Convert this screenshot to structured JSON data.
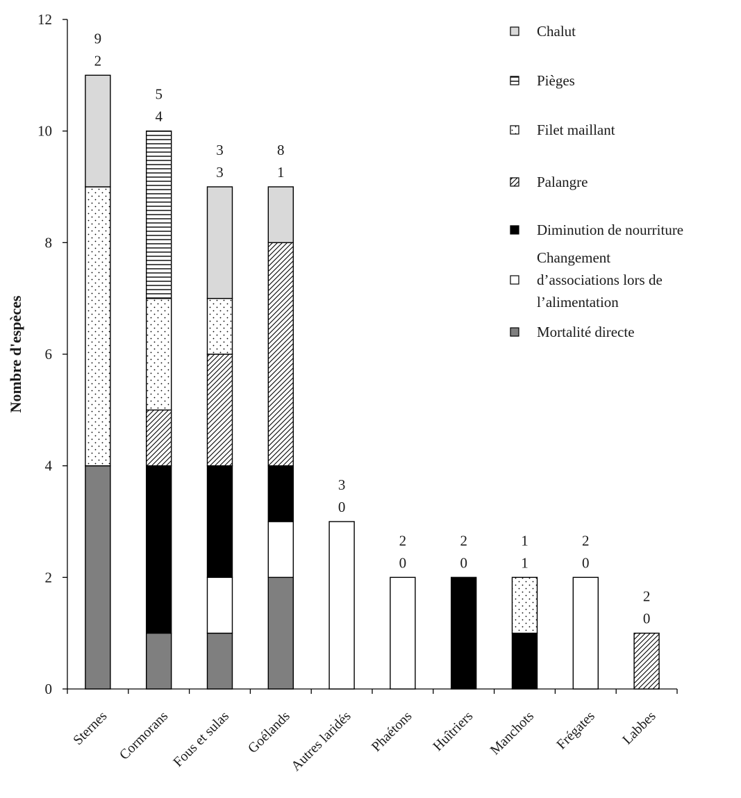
{
  "chart_data": {
    "type": "bar",
    "stacked": true,
    "ylabel": "Nombre d'espèces",
    "xlabel": "",
    "ylim": [
      0,
      12
    ],
    "yticks": [
      "0",
      "2",
      "4",
      "6",
      "8",
      "10",
      "12"
    ],
    "grid": false,
    "legend_position": "top-right",
    "categories": [
      "Sternes",
      "Cormorans",
      "Fous et sulas",
      "Goélands",
      "Autres laridés",
      "Phaétons",
      "Huîtriers",
      "Manchots",
      "Frégates",
      "Labbes"
    ],
    "series": [
      {
        "name": "Mortalité directe",
        "color": "#7f7f7f",
        "pattern": "solid",
        "values": [
          4,
          1,
          1,
          2,
          0,
          0,
          0,
          0,
          0,
          0
        ]
      },
      {
        "name": "Changement d’associations lors de l’alimentation",
        "color": "#ffffff",
        "pattern": "none",
        "values": [
          0,
          0,
          1,
          1,
          3,
          2,
          0,
          0,
          2,
          0
        ]
      },
      {
        "name": "Diminution de nourriture",
        "color": "#000000",
        "pattern": "solid",
        "values": [
          0,
          3,
          2,
          1,
          0,
          0,
          2,
          1,
          0,
          0
        ]
      },
      {
        "name": "Palangre",
        "color": "#ffffff",
        "pattern": "diagonal",
        "values": [
          0,
          1,
          2,
          4,
          0,
          0,
          0,
          0,
          0,
          1
        ]
      },
      {
        "name": "Filet maillant",
        "color": "#ffffff",
        "pattern": "dots",
        "values": [
          5,
          2,
          1,
          0,
          0,
          0,
          0,
          1,
          0,
          0
        ]
      },
      {
        "name": "Pièges",
        "color": "#ffffff",
        "pattern": "horizontal",
        "values": [
          0,
          3,
          0,
          0,
          0,
          0,
          0,
          0,
          0,
          0
        ]
      },
      {
        "name": "Chalut",
        "color": "#d9d9d9",
        "pattern": "solid",
        "values": [
          2,
          0,
          2,
          1,
          0,
          0,
          0,
          0,
          0,
          0
        ]
      }
    ],
    "annotations": [
      {
        "category": "Sternes",
        "top": "9",
        "bottom": "2"
      },
      {
        "category": "Cormorans",
        "top": "5",
        "bottom": "4"
      },
      {
        "category": "Fous et sulas",
        "top": "3",
        "bottom": "3"
      },
      {
        "category": "Goélands",
        "top": "8",
        "bottom": "1"
      },
      {
        "category": "Autres laridés",
        "top": "3",
        "bottom": "0"
      },
      {
        "category": "Phaétons",
        "top": "2",
        "bottom": "0"
      },
      {
        "category": "Huîtriers",
        "top": "2",
        "bottom": "0"
      },
      {
        "category": "Manchots",
        "top": "1",
        "bottom": "1"
      },
      {
        "category": "Frégates",
        "top": "2",
        "bottom": "0"
      },
      {
        "category": "Labbes",
        "top": "2",
        "bottom": "0"
      }
    ],
    "legend": [
      {
        "series": "Chalut",
        "lines": [
          "Chalut"
        ]
      },
      {
        "series": "Pièges",
        "lines": [
          "Pièges"
        ]
      },
      {
        "series": "Filet maillant",
        "lines": [
          "Filet maillant"
        ]
      },
      {
        "series": "Palangre",
        "lines": [
          "Palangre"
        ]
      },
      {
        "series": "Diminution de nourriture",
        "lines": [
          "Diminution de nourriture"
        ]
      },
      {
        "series": "Changement d’associations lors de l’alimentation",
        "lines": [
          "Changement",
          "d’associations lors de",
          "l’alimentation"
        ]
      },
      {
        "series": "Mortalité directe",
        "lines": [
          "Mortalité directe"
        ]
      }
    ]
  }
}
